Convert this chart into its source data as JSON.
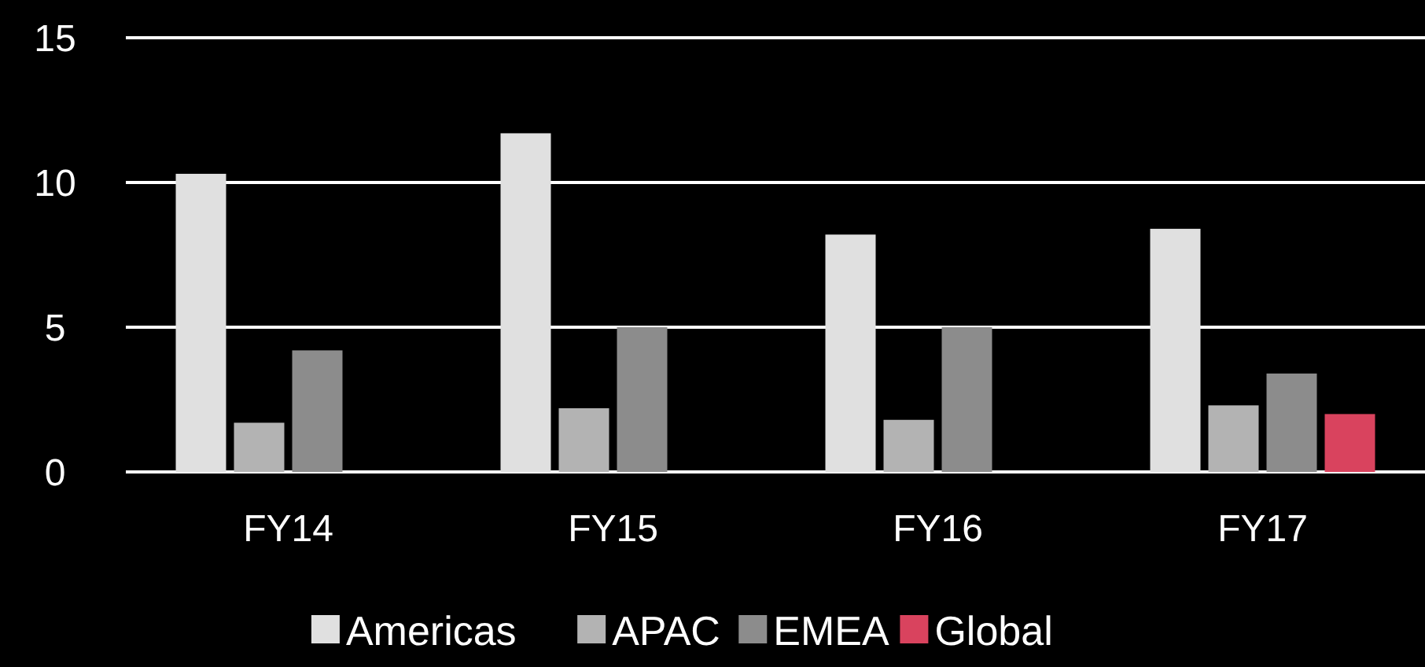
{
  "chart_data": {
    "type": "bar",
    "categories": [
      "FY14",
      "FY15",
      "FY16",
      "FY17"
    ],
    "series": [
      {
        "name": "Americas",
        "color": "#e0e0e0",
        "values": [
          10.3,
          11.7,
          8.2,
          8.4
        ]
      },
      {
        "name": "APAC",
        "color": "#b3b3b3",
        "values": [
          1.7,
          2.2,
          1.8,
          2.3
        ]
      },
      {
        "name": "EMEA",
        "color": "#8c8c8c",
        "values": [
          4.2,
          5.0,
          5.0,
          3.4
        ]
      },
      {
        "name": "Global",
        "color": "#d9435e",
        "values": [
          null,
          null,
          null,
          2.0
        ]
      }
    ],
    "ylim": [
      0,
      15
    ],
    "yticks": [
      0,
      5,
      10,
      15
    ],
    "grid": "y",
    "legend": "bottom"
  }
}
